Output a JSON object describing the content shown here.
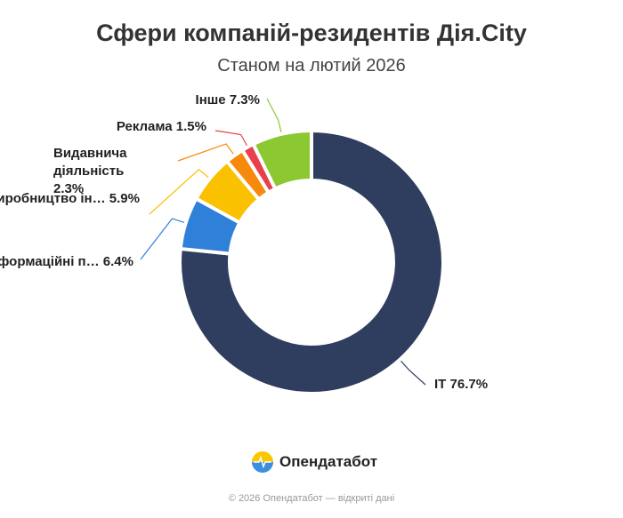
{
  "chart_data": {
    "type": "donut",
    "title": "Сфери компаній-резидентів Дія.City",
    "subtitle": "Станом на лютий 2026",
    "categories": [
      "IT",
      "Інформаційні п…",
      "Виробництво ін…",
      "Видавнича діяльність",
      "Реклама",
      "Інше"
    ],
    "values": [
      76.7,
      6.4,
      5.9,
      2.3,
      1.5,
      7.3
    ],
    "value_labels": [
      "76.7%",
      "6.4%",
      "5.9%",
      "2.3%",
      "1.5%",
      "7.3%"
    ],
    "colors": [
      "#2f3e5e",
      "#2f80d9",
      "#f9c100",
      "#f7890c",
      "#e8414c",
      "#8cc832"
    ]
  },
  "brand": "Опендатабот",
  "footer": "© 2026 Опендатабот — відкриті дані"
}
